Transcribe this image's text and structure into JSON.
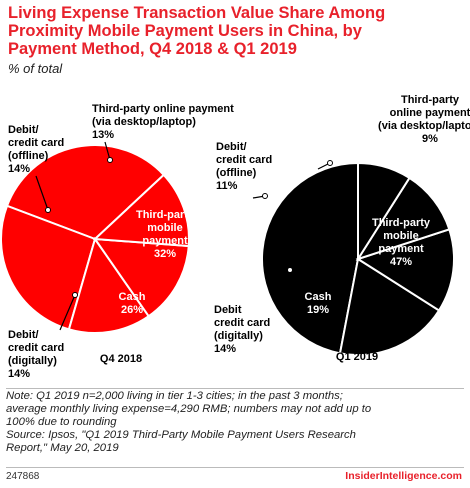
{
  "title_line1": "Living Expense Transaction Value Share Among",
  "title_line2": "Proximity Mobile Payment Users in China, by",
  "title_line3": "Payment Method, Q4 2018 & Q1 2019",
  "subtitle": "% of total",
  "colors": {
    "q4": "#ff0000",
    "q1": "#000000",
    "accent": "#e8212b"
  },
  "chart_data": [
    {
      "type": "pie",
      "name": "Q4 2018",
      "color": "#ff0000",
      "slices": [
        {
          "label": "Third-party mobile payment",
          "lines": [
            "Third-party",
            "mobile",
            "payment"
          ],
          "value": 32
        },
        {
          "label": "Cash",
          "lines": [
            "Cash"
          ],
          "value": 26
        },
        {
          "label": "Debit/credit card (digitally)",
          "lines": [
            "Debit/",
            "credit card",
            "(digitally)"
          ],
          "value": 14
        },
        {
          "label": "Debit/credit card (offline)",
          "lines": [
            "Debit/",
            "credit card",
            "(offline)"
          ],
          "value": 14
        },
        {
          "label": "Third-party online payment (via desktop/laptop)",
          "lines": [
            "Third-party online payment",
            "(via desktop/laptop)"
          ],
          "value": 13
        }
      ]
    },
    {
      "type": "pie",
      "name": "Q1 2019",
      "color": "#000000",
      "slices": [
        {
          "label": "Third-party mobile payment",
          "lines": [
            "Third-party",
            "mobile",
            "payment"
          ],
          "value": 47
        },
        {
          "label": "Cash",
          "lines": [
            "Cash"
          ],
          "value": 19
        },
        {
          "label": "Debit credit card (digitally)",
          "lines": [
            "Debit",
            "credit card",
            "(digitally)"
          ],
          "value": 14
        },
        {
          "label": "Debit/credit card (offline)",
          "lines": [
            "Debit/",
            "credit card",
            "(offline)"
          ],
          "value": 11
        },
        {
          "label": "Third-party online payment (via desktop/laptop)",
          "lines": [
            "Third-party",
            "online payment",
            "(via desktop/laptop)"
          ],
          "value": 9
        }
      ]
    }
  ],
  "note_line1": "Note: Q1 2019 n=2,000 living in tier 1-3 cities; in the past 3 months;",
  "note_line2": "average monthly living expense=4,290 RMB; numbers may not add up to",
  "note_line3": "100% due to rounding",
  "source_line1": "Source: Ipsos, \"Q1 2019 Third-Party Mobile Payment Users Research",
  "source_line2": "Report,\" May 20, 2019",
  "footer_id": "247868",
  "brand": "InsiderIntelligence.com"
}
